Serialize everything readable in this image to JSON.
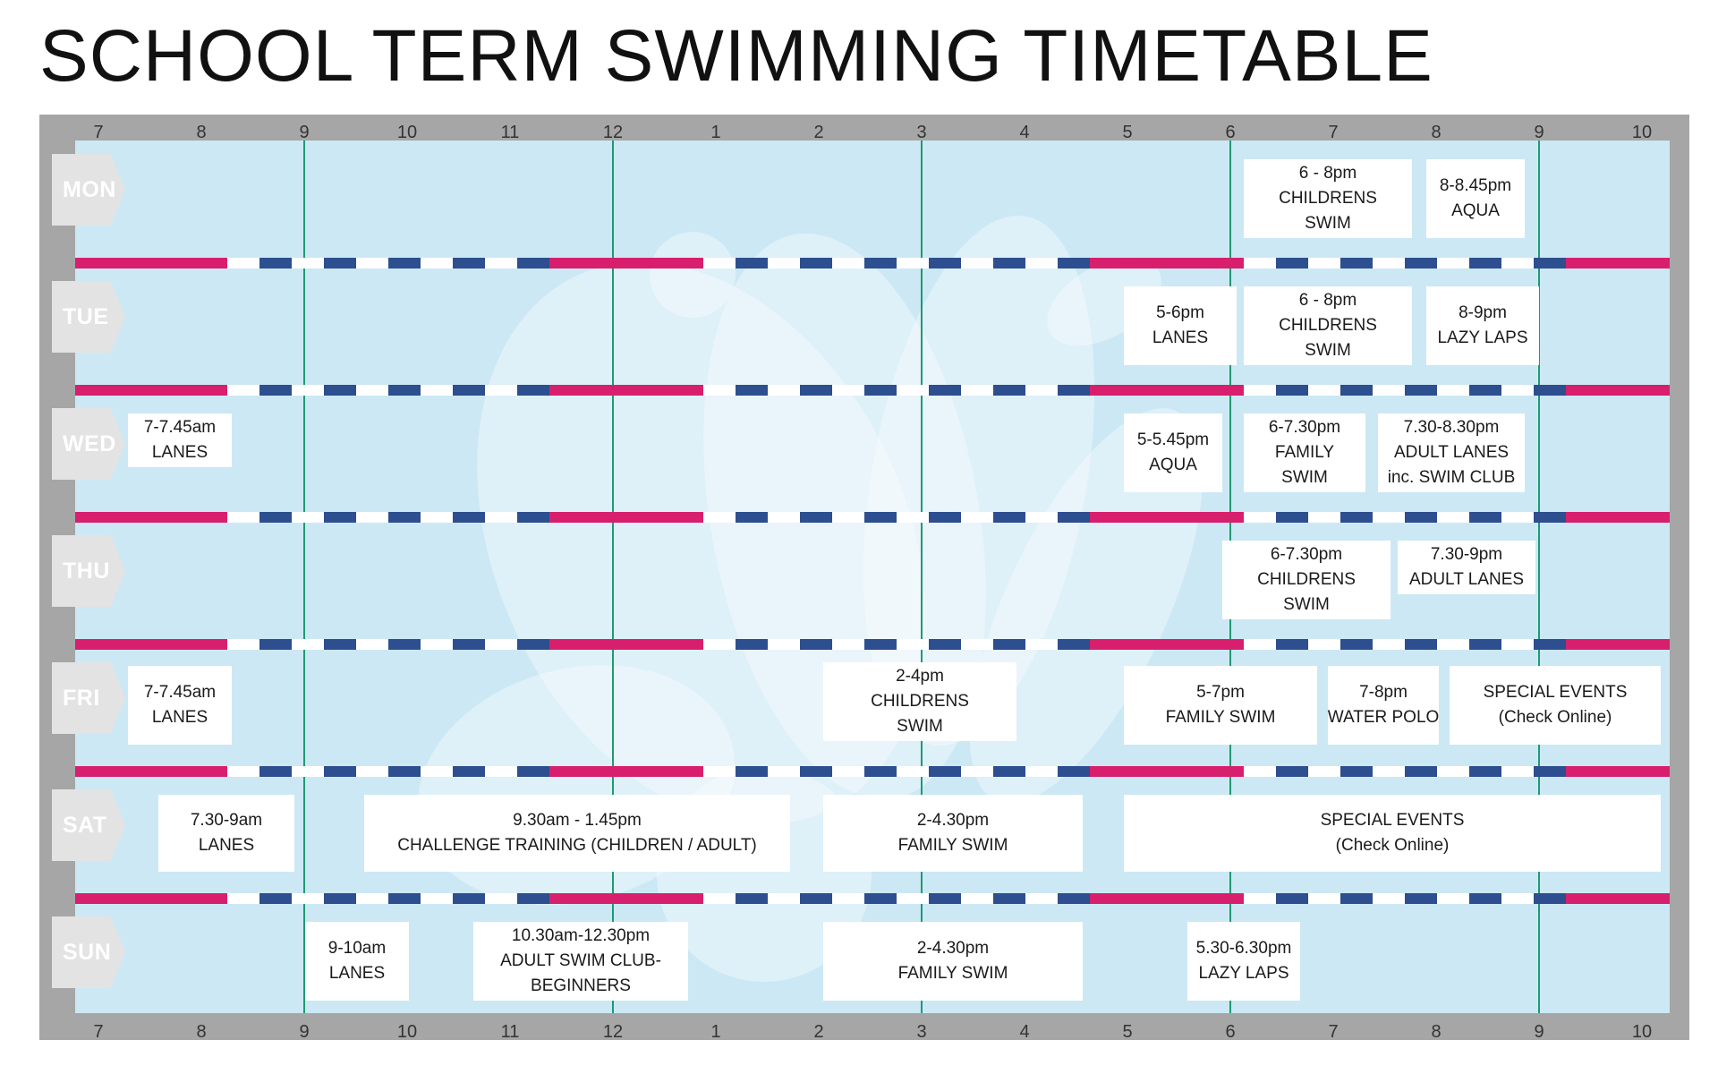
{
  "title": "SCHOOL TERM SWIMMING TIMETABLE",
  "hour_labels": [
    "7",
    "8",
    "9",
    "10",
    "11",
    "12",
    "1",
    "2",
    "3",
    "4",
    "5",
    "6",
    "7",
    "8",
    "9",
    "10"
  ],
  "days": [
    "MON",
    "TUE",
    "WED",
    "THU",
    "FRI",
    "SAT",
    "SUN"
  ],
  "colors": {
    "frame": "#a6a6a6",
    "pool": "#cce8f4",
    "lane_pink": "#d81f6e",
    "lane_blue": "#2d4e8f",
    "gridline": "#1e9a72"
  },
  "sessions": [
    {
      "day": "MON",
      "lines": [
        "6 - 8pm",
        "CHILDRENS",
        "SWIM"
      ]
    },
    {
      "day": "MON",
      "lines": [
        "8-8.45pm",
        "AQUA"
      ]
    },
    {
      "day": "TUE",
      "lines": [
        "5-6pm",
        "LANES"
      ]
    },
    {
      "day": "TUE",
      "lines": [
        "6 - 8pm",
        "CHILDRENS",
        "SWIM"
      ]
    },
    {
      "day": "TUE",
      "lines": [
        "8-9pm",
        "LAZY LAPS"
      ]
    },
    {
      "day": "WED",
      "lines": [
        "7-7.45am",
        "LANES"
      ]
    },
    {
      "day": "WED",
      "lines": [
        "5-5.45pm",
        "AQUA"
      ]
    },
    {
      "day": "WED",
      "lines": [
        "6-7.30pm",
        "FAMILY",
        "SWIM"
      ]
    },
    {
      "day": "WED",
      "lines": [
        "7.30-8.30pm",
        "ADULT LANES",
        "inc. SWIM CLUB"
      ]
    },
    {
      "day": "THU",
      "lines": [
        "6-7.30pm",
        "CHILDRENS",
        "SWIM"
      ]
    },
    {
      "day": "THU",
      "lines": [
        "7.30-9pm",
        "ADULT LANES"
      ]
    },
    {
      "day": "FRI",
      "lines": [
        "7-7.45am",
        "LANES"
      ]
    },
    {
      "day": "FRI",
      "lines": [
        "2-4pm",
        "CHILDRENS",
        "SWIM"
      ]
    },
    {
      "day": "FRI",
      "lines": [
        "5-7pm",
        "FAMILY SWIM"
      ]
    },
    {
      "day": "FRI",
      "lines": [
        "7-8pm",
        "WATER POLO"
      ]
    },
    {
      "day": "FRI",
      "lines": [
        "SPECIAL EVENTS",
        "(Check Online)"
      ]
    },
    {
      "day": "SAT",
      "lines": [
        "7.30-9am",
        "LANES"
      ]
    },
    {
      "day": "SAT",
      "lines": [
        "9.30am - 1.45pm",
        "CHALLENGE TRAINING (CHILDREN / ADULT)"
      ]
    },
    {
      "day": "SAT",
      "lines": [
        "2-4.30pm",
        "FAMILY SWIM"
      ]
    },
    {
      "day": "SAT",
      "lines": [
        "SPECIAL EVENTS",
        "(Check Online)"
      ]
    },
    {
      "day": "SUN",
      "lines": [
        "9-10am",
        "LANES"
      ]
    },
    {
      "day": "SUN",
      "lines": [
        "10.30am-12.30pm",
        "ADULT SWIM CLUB-",
        "BEGINNERS"
      ]
    },
    {
      "day": "SUN",
      "lines": [
        "2-4.30pm",
        "FAMILY SWIM"
      ]
    },
    {
      "day": "SUN",
      "lines": [
        "5.30-6.30pm",
        "LAZY LAPS"
      ]
    }
  ]
}
